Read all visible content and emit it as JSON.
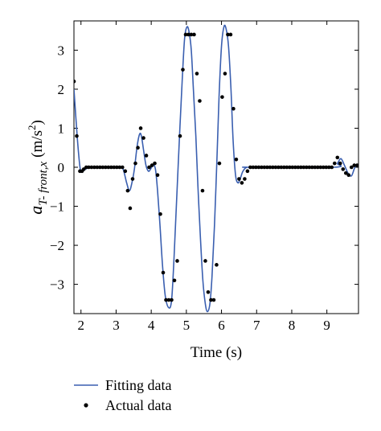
{
  "chart_data": {
    "type": "line",
    "xlabel": "Time (s)",
    "ylabel": {
      "base": "a",
      "subscript": "T- front,x",
      "unit_open": "(m/s",
      "unit_sup": "2",
      "unit_close": ")"
    },
    "xlim": [
      1.8,
      9.9
    ],
    "ylim": [
      -3.75,
      3.75
    ],
    "xticks": [
      "2",
      "3",
      "4",
      "5",
      "6",
      "7",
      "8",
      "9"
    ],
    "yticks": [
      "3",
      "2",
      "1",
      "0",
      "−1",
      "−2",
      "−3"
    ],
    "grid": false,
    "legend_position": "bottom-left, below plot",
    "legend": {
      "fitting_label": "Fitting data",
      "actual_label": "Actual data"
    },
    "colors": {
      "fitting": "#3a5fb0",
      "actual": "#000000"
    },
    "series": [
      {
        "name": "Fitting data",
        "style": "line",
        "x": [
          1.8,
          1.9,
          1.98,
          2.05,
          2.15,
          2.3,
          3.1,
          3.2,
          3.3,
          3.38,
          3.45,
          3.52,
          3.6,
          3.67,
          3.72,
          3.78,
          3.85,
          3.92,
          3.98,
          4.05,
          4.12,
          4.18,
          4.25,
          4.32,
          4.4,
          4.5,
          4.58,
          4.65,
          4.72,
          4.8,
          4.88,
          4.95,
          5.02,
          5.08,
          5.14,
          5.2,
          5.27,
          5.33,
          5.4,
          5.47,
          5.54,
          5.6,
          5.67,
          5.73,
          5.8,
          5.87,
          5.93,
          6.0,
          6.07,
          6.13,
          6.2,
          6.27,
          6.33,
          6.4,
          6.47,
          6.53,
          6.6,
          6.67,
          6.73,
          6.8,
          9.2,
          9.3,
          9.4,
          9.5,
          9.6,
          9.7,
          9.8,
          9.9
        ],
        "y": [
          2.0,
          0.7,
          -0.05,
          -0.1,
          -0.04,
          0.0,
          0.0,
          -0.05,
          -0.4,
          -0.6,
          -0.4,
          -0.05,
          0.55,
          0.85,
          0.8,
          0.45,
          0.05,
          -0.1,
          -0.05,
          0.05,
          -0.05,
          -0.6,
          -1.5,
          -2.5,
          -3.3,
          -3.6,
          -3.4,
          -2.3,
          -0.9,
          0.7,
          2.2,
          3.3,
          3.6,
          3.45,
          3.0,
          2.0,
          0.8,
          -0.5,
          -1.8,
          -2.9,
          -3.5,
          -3.7,
          -3.5,
          -2.8,
          -1.5,
          0.2,
          1.8,
          3.1,
          3.6,
          3.55,
          3.1,
          2.0,
          0.7,
          -0.2,
          -0.4,
          -0.3,
          -0.12,
          -0.03,
          0.0,
          0.0,
          0.0,
          0.1,
          0.22,
          0.05,
          -0.15,
          -0.22,
          0.0,
          0.05
        ]
      },
      {
        "name": "Actual data",
        "style": "markers",
        "x": [
          1.8,
          1.88,
          1.97,
          2.03,
          2.08,
          2.15,
          2.22,
          2.3,
          2.38,
          2.46,
          2.54,
          2.62,
          2.7,
          2.78,
          2.86,
          2.94,
          3.02,
          3.1,
          3.18,
          3.26,
          3.33,
          3.4,
          3.47,
          3.55,
          3.62,
          3.7,
          3.78,
          3.86,
          3.94,
          4.02,
          4.1,
          4.18,
          4.26,
          4.34,
          4.42,
          4.5,
          4.58,
          4.66,
          4.74,
          4.82,
          4.9,
          4.98,
          5.06,
          5.14,
          5.22,
          5.3,
          5.38,
          5.46,
          5.54,
          5.62,
          5.7,
          5.78,
          5.86,
          5.94,
          6.02,
          6.1,
          6.18,
          6.26,
          6.34,
          6.42,
          6.5,
          6.58,
          6.66,
          6.74,
          6.82,
          6.9,
          6.98,
          7.06,
          7.14,
          7.22,
          7.3,
          7.38,
          7.46,
          7.54,
          7.62,
          7.7,
          7.78,
          7.86,
          7.94,
          8.02,
          8.1,
          8.18,
          8.26,
          8.34,
          8.42,
          8.5,
          8.58,
          8.66,
          8.74,
          8.82,
          8.9,
          8.98,
          9.06,
          9.14,
          9.22,
          9.3,
          9.38,
          9.46,
          9.54,
          9.62,
          9.7,
          9.78,
          9.86
        ],
        "y": [
          2.2,
          0.8,
          -0.1,
          -0.1,
          -0.05,
          0.0,
          0.0,
          0.0,
          0.0,
          0.0,
          0.0,
          0.0,
          0.0,
          0.0,
          0.0,
          0.0,
          0.0,
          0.0,
          0.0,
          -0.1,
          -0.6,
          -1.05,
          -0.3,
          0.1,
          0.5,
          1.0,
          0.75,
          0.3,
          0.0,
          0.05,
          0.1,
          -0.2,
          -1.2,
          -2.7,
          -3.4,
          -3.4,
          -3.4,
          -2.9,
          -2.4,
          0.8,
          2.5,
          3.4,
          3.4,
          3.4,
          3.4,
          2.4,
          1.7,
          -0.6,
          -2.4,
          -3.2,
          -3.4,
          -3.4,
          -2.5,
          0.1,
          1.8,
          2.4,
          3.4,
          3.4,
          1.5,
          0.2,
          -0.3,
          -0.4,
          -0.3,
          -0.1,
          0.0,
          0.0,
          0.0,
          0.0,
          0.0,
          0.0,
          0.0,
          0.0,
          0.0,
          0.0,
          0.0,
          0.0,
          0.0,
          0.0,
          0.0,
          0.0,
          0.0,
          0.0,
          0.0,
          0.0,
          0.0,
          0.0,
          0.0,
          0.0,
          0.0,
          0.0,
          0.0,
          0.0,
          0.0,
          0.0,
          0.1,
          0.25,
          0.1,
          -0.05,
          -0.15,
          -0.2,
          0.0,
          0.05,
          0.05
        ]
      }
    ]
  }
}
